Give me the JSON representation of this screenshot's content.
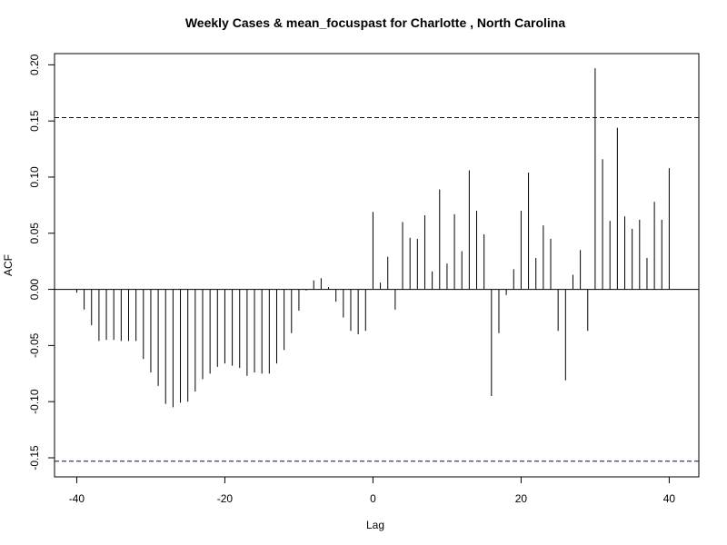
{
  "chart_data": {
    "type": "bar",
    "title": "Weekly Cases & mean_focuspast for Charlotte , North Carolina",
    "xlabel": "Lag",
    "ylabel": "ACF",
    "xlim": [
      -43,
      44
    ],
    "ylim": [
      -0.167,
      0.21
    ],
    "x_ticks": [
      -40,
      -20,
      0,
      20,
      40
    ],
    "x_tick_labels": [
      "-40",
      "-20",
      "0",
      "20",
      "40"
    ],
    "y_ticks": [
      -0.15,
      -0.1,
      -0.05,
      0.0,
      0.05,
      0.1,
      0.15,
      0.2
    ],
    "y_tick_labels": [
      "-0.15",
      "-0.10",
      "-0.05",
      "0.00",
      "0.05",
      "0.10",
      "0.15",
      "0.20"
    ],
    "confidence_bound": 0.153,
    "confidence_color": "#00008b",
    "bar_color": "#000000",
    "lags": [
      -40,
      -39,
      -38,
      -37,
      -36,
      -35,
      -34,
      -33,
      -32,
      -31,
      -30,
      -29,
      -28,
      -27,
      -26,
      -25,
      -24,
      -23,
      -22,
      -21,
      -20,
      -19,
      -18,
      -17,
      -16,
      -15,
      -14,
      -13,
      -12,
      -11,
      -10,
      -9,
      -8,
      -7,
      -6,
      -5,
      -4,
      -3,
      -2,
      -1,
      0,
      1,
      2,
      3,
      4,
      5,
      6,
      7,
      8,
      9,
      10,
      11,
      12,
      13,
      14,
      15,
      16,
      17,
      18,
      19,
      20,
      21,
      22,
      23,
      24,
      25,
      26,
      27,
      28,
      29,
      30,
      31,
      32,
      33,
      34,
      35,
      36,
      37,
      38,
      39,
      40
    ],
    "values": [
      -0.003,
      -0.018,
      -0.032,
      -0.046,
      -0.045,
      -0.045,
      -0.046,
      -0.046,
      -0.046,
      -0.062,
      -0.074,
      -0.086,
      -0.102,
      -0.105,
      -0.101,
      -0.1,
      -0.091,
      -0.08,
      -0.075,
      -0.069,
      -0.066,
      -0.068,
      -0.07,
      -0.077,
      -0.074,
      -0.075,
      -0.075,
      -0.066,
      -0.054,
      -0.039,
      -0.019,
      -0.001,
      0.008,
      0.01,
      0.002,
      -0.011,
      -0.025,
      -0.037,
      -0.04,
      -0.037,
      0.069,
      0.006,
      0.029,
      -0.018,
      0.06,
      0.046,
      0.045,
      0.066,
      0.016,
      0.089,
      0.023,
      0.067,
      0.034,
      0.106,
      0.07,
      0.049,
      -0.095,
      -0.039,
      -0.005,
      0.018,
      0.07,
      0.104,
      0.028,
      0.057,
      0.045,
      -0.037,
      -0.081,
      0.013,
      0.035,
      -0.037,
      0.197,
      0.116,
      0.061,
      0.144,
      0.065,
      0.054,
      0.062,
      0.028,
      0.078,
      0.062,
      0.108
    ]
  }
}
